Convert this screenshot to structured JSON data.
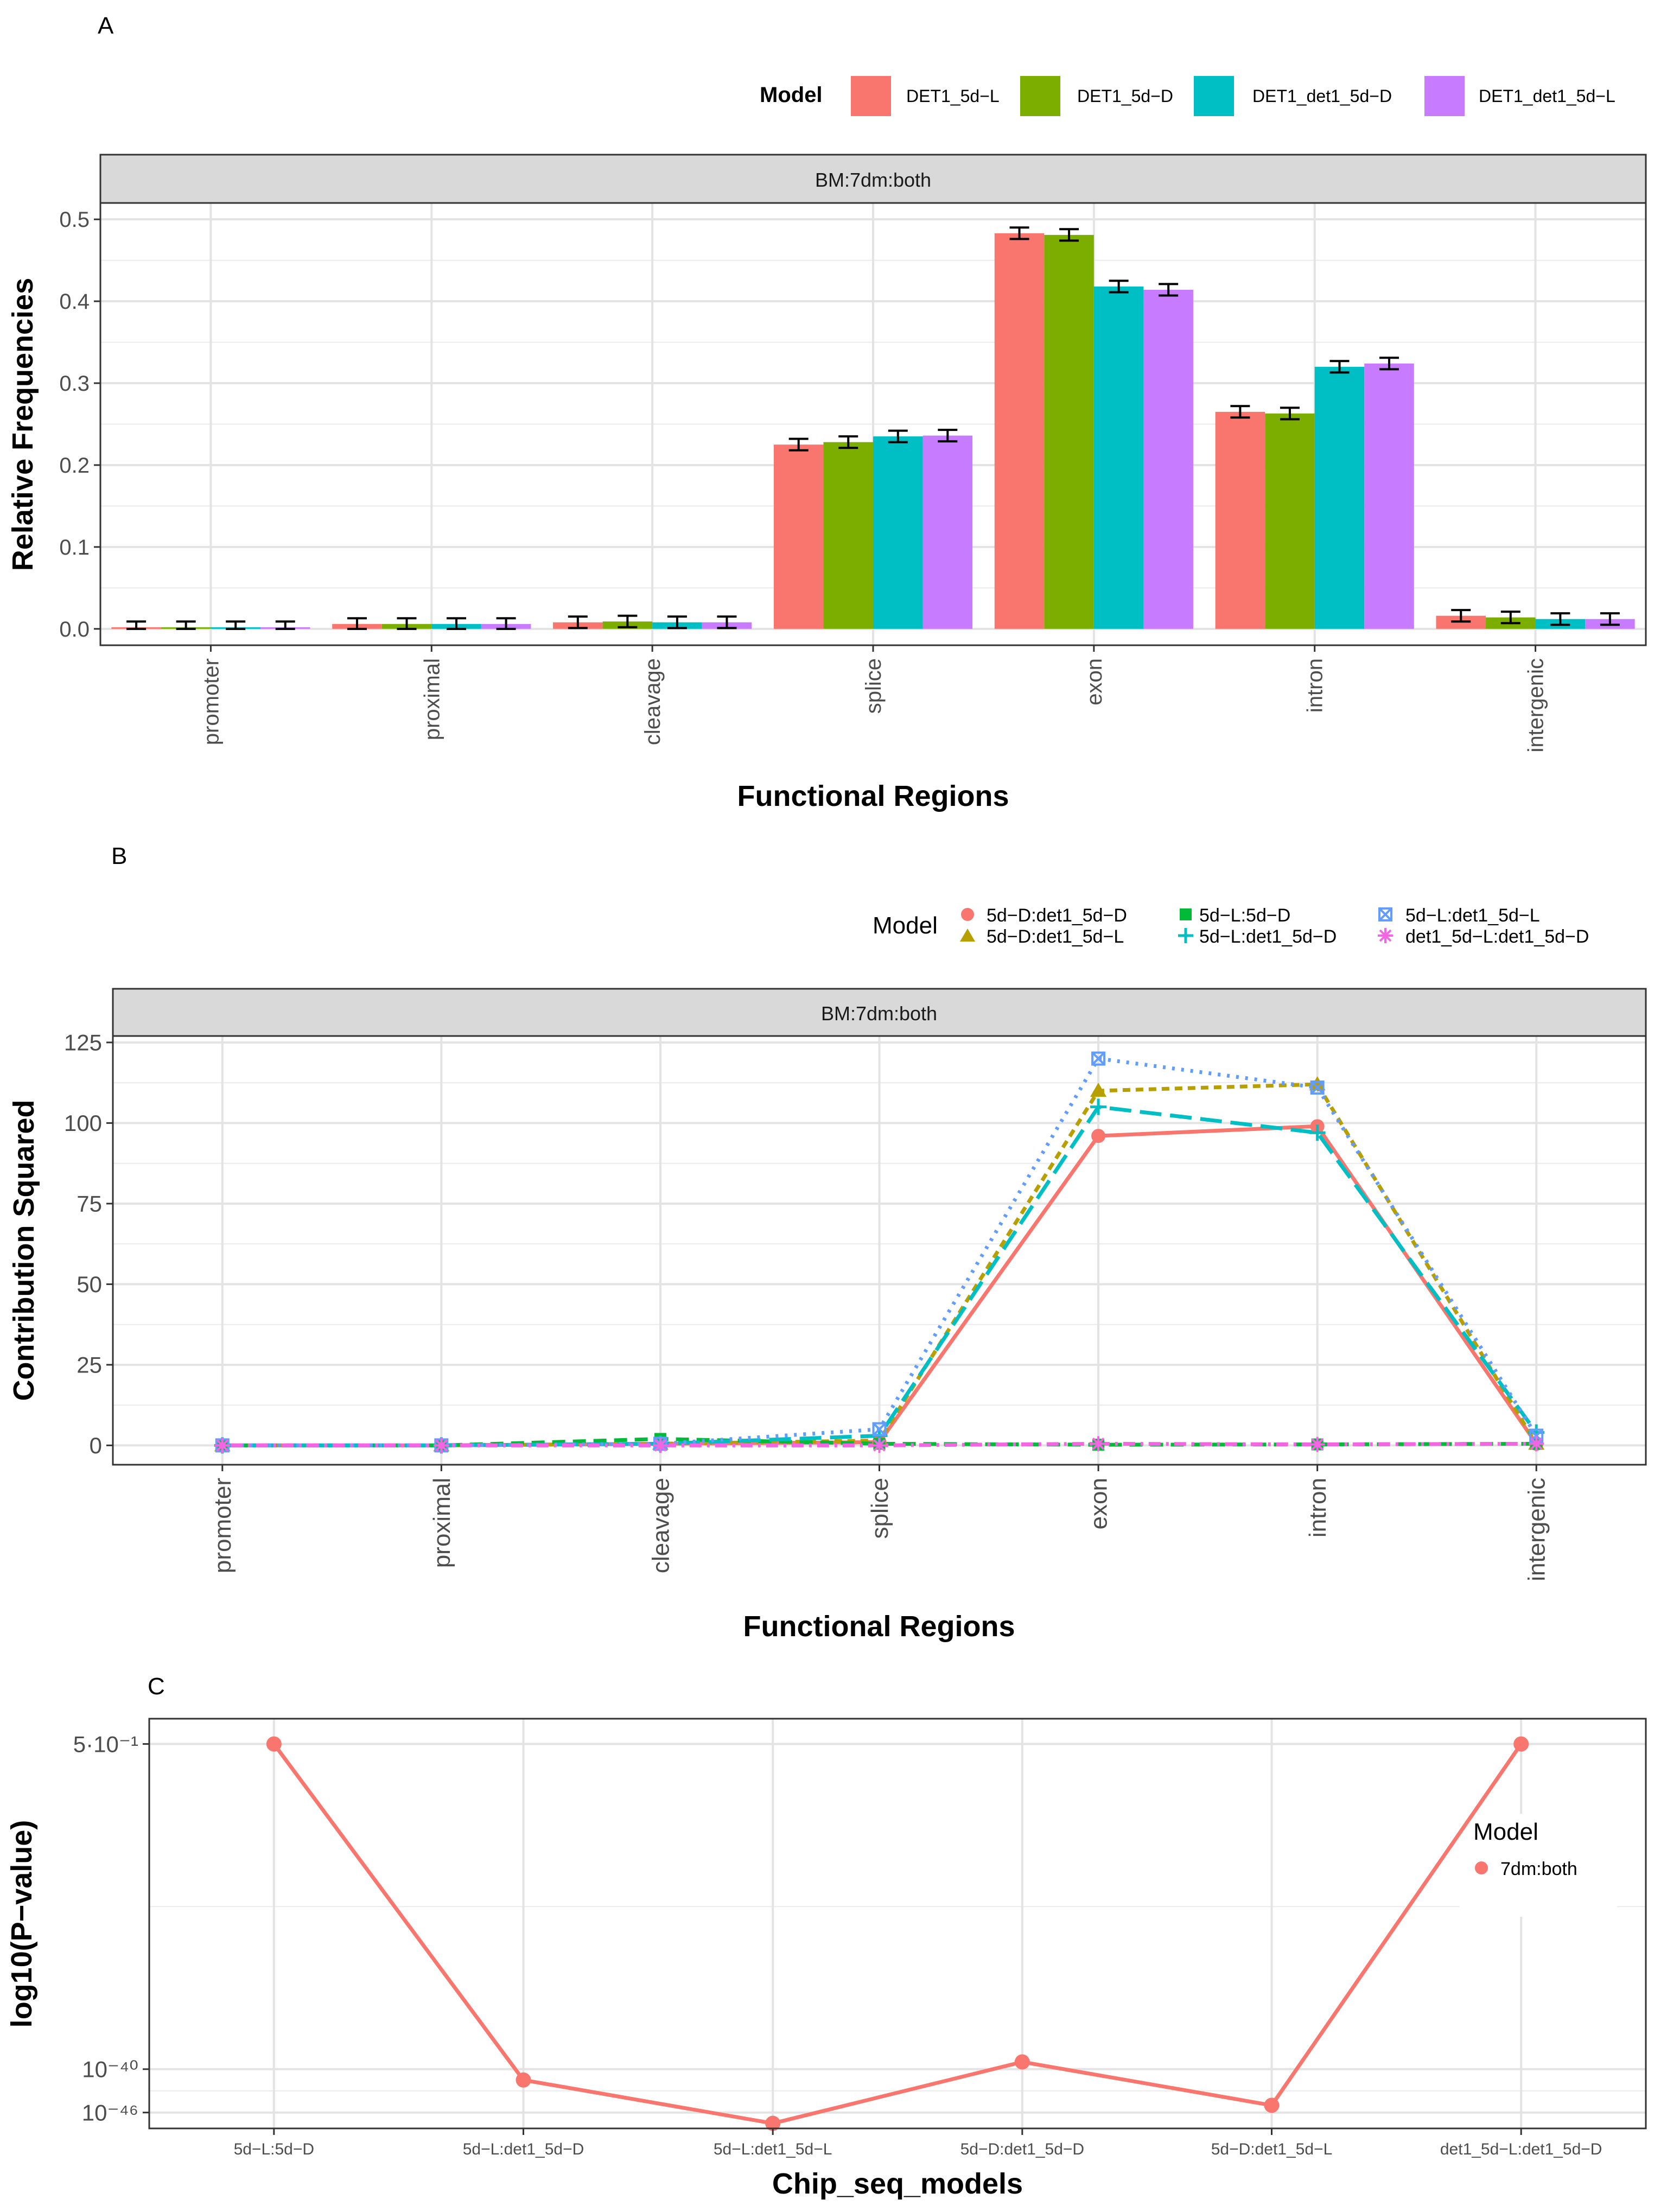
{
  "chart_data": [
    {
      "panel_label": "A",
      "type": "bar",
      "facet": "BM:7dm:both",
      "xlabel": "Functional Regions",
      "ylabel": "Relative Frequencies",
      "ylim": [
        -0.02,
        0.52
      ],
      "yticks": [
        0.0,
        0.1,
        0.2,
        0.3,
        0.4,
        0.5
      ],
      "ytick_labels": [
        "0.0",
        "0.1",
        "0.2",
        "0.3",
        "0.4",
        "0.5"
      ],
      "categories": [
        "promoter",
        "proximal",
        "cleavage",
        "splice",
        "exon",
        "intron",
        "intergenic"
      ],
      "legend_title": "Model",
      "legend_position": "top-right",
      "error_bar_halfwidth": 0.007,
      "series": [
        {
          "name": "DET1_5d−L",
          "color": "#F8766D",
          "values": [
            0.002,
            0.006,
            0.008,
            0.225,
            0.483,
            0.265,
            0.016
          ]
        },
        {
          "name": "DET1_5d−D",
          "color": "#7CAE00",
          "values": [
            0.002,
            0.006,
            0.009,
            0.228,
            0.481,
            0.263,
            0.014
          ]
        },
        {
          "name": "DET1_det1_5d−D",
          "color": "#00BFC4",
          "values": [
            0.002,
            0.006,
            0.008,
            0.235,
            0.418,
            0.32,
            0.012
          ]
        },
        {
          "name": "DET1_det1_5d−L",
          "color": "#C77CFF",
          "values": [
            0.002,
            0.006,
            0.008,
            0.236,
            0.414,
            0.324,
            0.012
          ]
        }
      ]
    },
    {
      "panel_label": "B",
      "type": "line",
      "facet": "BM:7dm:both",
      "xlabel": "Functional Regions",
      "ylabel": "Contribution Squared",
      "ylim": [
        -6,
        127
      ],
      "yticks": [
        0,
        25,
        50,
        75,
        100,
        125
      ],
      "ytick_labels": [
        "0",
        "25",
        "50",
        "75",
        "100",
        "125"
      ],
      "categories": [
        "promoter",
        "proximal",
        "cleavage",
        "splice",
        "exon",
        "intron",
        "intergenic"
      ],
      "legend_title": "Model",
      "legend_position": "top-right",
      "series": [
        {
          "name": "5d−D:det1_5d−D",
          "color": "#F8766D",
          "marker": "circle",
          "dash": "solid",
          "values": [
            0.0,
            0.0,
            0.5,
            1.0,
            96.0,
            99.0,
            0.5
          ]
        },
        {
          "name": "5d−D:det1_5d−L",
          "color": "#B79F00",
          "marker": "triangle",
          "dash": "short",
          "values": [
            0.0,
            0.0,
            0.5,
            1.5,
            110.0,
            112.0,
            0.5
          ]
        },
        {
          "name": "5d−L:5d−D",
          "color": "#00BA38",
          "marker": "square",
          "dash": "dash",
          "values": [
            0.0,
            0.0,
            2.0,
            0.5,
            0.2,
            0.3,
            0.5
          ]
        },
        {
          "name": "5d−L:det1_5d−D",
          "color": "#00BFC4",
          "marker": "plus",
          "dash": "long",
          "values": [
            0.0,
            0.0,
            0.5,
            3.0,
            105.0,
            97.0,
            4.0
          ]
        },
        {
          "name": "5d−L:det1_5d−L",
          "color": "#619CFF",
          "marker": "boxx",
          "dash": "dot",
          "values": [
            0.0,
            0.0,
            0.5,
            5.0,
            120.0,
            111.0,
            3.0
          ]
        },
        {
          "name": "det1_5d−L:det1_5d−D",
          "color": "#F564E3",
          "marker": "asterisk",
          "dash": "dotdash",
          "values": [
            0.0,
            0.0,
            0.0,
            0.0,
            0.5,
            0.3,
            0.5
          ]
        }
      ]
    },
    {
      "panel_label": "C",
      "type": "line",
      "xlabel": "Chip_seq_models",
      "ylabel": "log10(P−value)",
      "ylim": [
        -48.2,
        8.5
      ],
      "yticks": [
        5.0,
        -40.0,
        -46.0
      ],
      "ytick_labels": [
        "5·10⁻¹",
        "10⁻⁴⁰",
        "10⁻⁴⁶"
      ],
      "categories": [
        "5d−L:5d−D",
        "5d−L:det1_5d−D",
        "5d−L:det1_5d−L",
        "5d−D:det1_5d−D",
        "5d−D:det1_5d−L",
        "det1_5d−L:det1_5d−D"
      ],
      "legend_title": "Model",
      "legend_position": "right",
      "series": [
        {
          "name": "7dm:both",
          "color": "#F8766D",
          "values": [
            5.0,
            -41.5,
            -47.5,
            -39.0,
            -45.0,
            5.0
          ]
        }
      ]
    }
  ]
}
